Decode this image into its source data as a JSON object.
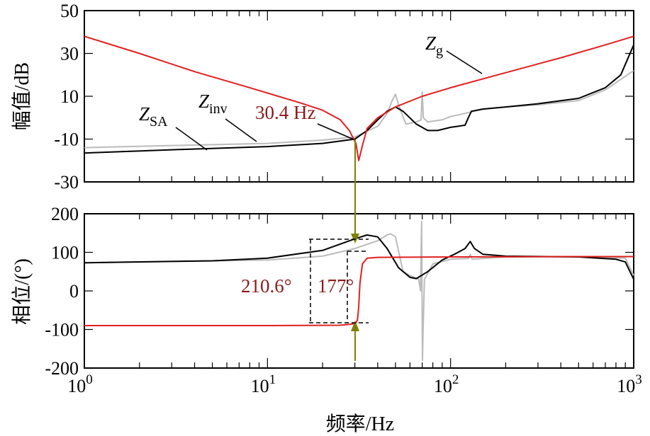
{
  "chart_data": [
    {
      "type": "line",
      "panel": "magnitude",
      "ylabel": "幅值/dB",
      "xscale": "log",
      "xlim": [
        1,
        1000
      ],
      "ylim": [
        -30,
        50
      ],
      "yticks": [
        "50",
        "30",
        "10",
        "-10",
        "-30"
      ],
      "series": [
        {
          "name": "Z_g",
          "color": "#e02020",
          "points": [
            [
              1,
              38
            ],
            [
              2,
              30
            ],
            [
              4,
              21.5
            ],
            [
              8,
              14
            ],
            [
              15,
              7
            ],
            [
              20,
              3.5
            ],
            [
              25,
              -1
            ],
            [
              28,
              -6
            ],
            [
              30.4,
              -12
            ],
            [
              31.5,
              -20
            ],
            [
              33,
              -13
            ],
            [
              35,
              -5
            ],
            [
              40,
              0
            ],
            [
              50,
              5
            ],
            [
              70,
              10
            ],
            [
              100,
              14
            ],
            [
              200,
              21
            ],
            [
              400,
              28
            ],
            [
              700,
              34
            ],
            [
              1000,
              38
            ]
          ]
        },
        {
          "name": "Z_inv",
          "color": "#bbbbbb",
          "points": [
            [
              1,
              -14
            ],
            [
              3,
              -13
            ],
            [
              10,
              -12
            ],
            [
              20,
              -10.5
            ],
            [
              30,
              -9
            ],
            [
              40,
              -4
            ],
            [
              45,
              2
            ],
            [
              48,
              8
            ],
            [
              50,
              11
            ],
            [
              52,
              6
            ],
            [
              57,
              -3
            ],
            [
              65,
              -2
            ],
            [
              69,
              -1
            ],
            [
              70,
              12
            ],
            [
              71,
              0
            ],
            [
              75,
              -2
            ],
            [
              90,
              -1
            ],
            [
              100,
              0.5
            ],
            [
              120,
              2
            ],
            [
              150,
              4
            ],
            [
              200,
              5
            ],
            [
              300,
              6
            ],
            [
              500,
              8
            ],
            [
              700,
              13
            ],
            [
              1000,
              22
            ]
          ]
        },
        {
          "name": "Z_SA",
          "color": "#000000",
          "points": [
            [
              1,
              -16.5
            ],
            [
              3,
              -15
            ],
            [
              10,
              -13.5
            ],
            [
              20,
              -12
            ],
            [
              30,
              -10
            ],
            [
              35,
              -6
            ],
            [
              40,
              -1
            ],
            [
              45,
              3
            ],
            [
              50,
              5
            ],
            [
              55,
              3
            ],
            [
              65,
              -3
            ],
            [
              75,
              -6
            ],
            [
              85,
              -6
            ],
            [
              100,
              -4.5
            ],
            [
              110,
              -4
            ],
            [
              120,
              -3.5
            ],
            [
              125,
              0
            ],
            [
              130,
              3
            ],
            [
              150,
              4
            ],
            [
              200,
              5
            ],
            [
              300,
              6.5
            ],
            [
              500,
              9
            ],
            [
              700,
              14
            ],
            [
              850,
              20
            ],
            [
              1000,
              34
            ]
          ]
        }
      ],
      "annotations": [
        {
          "text": "Z",
          "sub": "g"
        },
        {
          "text": "Z",
          "sub": "inv"
        },
        {
          "text": "Z",
          "sub": "SA"
        },
        {
          "text": "30.4 Hz",
          "color": "#8b1a1a"
        }
      ]
    },
    {
      "type": "line",
      "panel": "phase",
      "ylabel": "相位/(°)",
      "xlabel": "频率/Hz",
      "xscale": "log",
      "xlim": [
        1,
        1000
      ],
      "ylim": [
        -200,
        200
      ],
      "yticks": [
        "200",
        "100",
        "0",
        "-100",
        "-200"
      ],
      "xticks": [
        {
          "base": "10",
          "exp": "0"
        },
        {
          "base": "10",
          "exp": "1"
        },
        {
          "base": "10",
          "exp": "2"
        },
        {
          "base": "10",
          "exp": "3"
        }
      ],
      "series": [
        {
          "name": "Z_g",
          "color": "#e02020",
          "points": [
            [
              1,
              -90
            ],
            [
              10,
              -90
            ],
            [
              25,
              -89
            ],
            [
              29,
              -86
            ],
            [
              30.4,
              -83
            ],
            [
              31,
              -75
            ],
            [
              31.5,
              -40
            ],
            [
              32,
              20
            ],
            [
              33,
              70
            ],
            [
              35,
              85
            ],
            [
              40,
              87
            ],
            [
              100,
              88
            ],
            [
              500,
              89
            ],
            [
              1000,
              89
            ]
          ]
        },
        {
          "name": "Z_inv",
          "color": "#bbbbbb",
          "points": [
            [
              1,
              73
            ],
            [
              10,
              80
            ],
            [
              20,
              90
            ],
            [
              30,
              110
            ],
            [
              40,
              130
            ],
            [
              45,
              145
            ],
            [
              47,
              148
            ],
            [
              50,
              140
            ],
            [
              55,
              50
            ],
            [
              60,
              40
            ],
            [
              67,
              30
            ],
            [
              68.5,
              0
            ],
            [
              69.5,
              180
            ],
            [
              70.2,
              -180
            ],
            [
              70.8,
              -100
            ],
            [
              72,
              30
            ],
            [
              80,
              70
            ],
            [
              100,
              82
            ],
            [
              125,
              84
            ],
            [
              128,
              95
            ],
            [
              131,
              82
            ],
            [
              200,
              88
            ],
            [
              500,
              88
            ],
            [
              900,
              85
            ],
            [
              1000,
              40
            ]
          ]
        },
        {
          "name": "Z_SA",
          "color": "#000000",
          "points": [
            [
              1,
              73
            ],
            [
              5,
              78
            ],
            [
              10,
              85
            ],
            [
              20,
              105
            ],
            [
              30,
              135
            ],
            [
              35,
              145
            ],
            [
              40,
              140
            ],
            [
              45,
              110
            ],
            [
              52,
              60
            ],
            [
              60,
              35
            ],
            [
              65,
              32
            ],
            [
              75,
              50
            ],
            [
              90,
              80
            ],
            [
              105,
              95
            ],
            [
              120,
              110
            ],
            [
              128,
              128
            ],
            [
              135,
              110
            ],
            [
              150,
              95
            ],
            [
              200,
              90
            ],
            [
              500,
              88
            ],
            [
              800,
              82
            ],
            [
              900,
              75
            ],
            [
              1000,
              30
            ]
          ]
        }
      ],
      "annotations": [
        {
          "text": "210.6°",
          "color": "#8b1a1a"
        },
        {
          "text": "177°",
          "color": "#8b1a1a"
        }
      ]
    }
  ]
}
